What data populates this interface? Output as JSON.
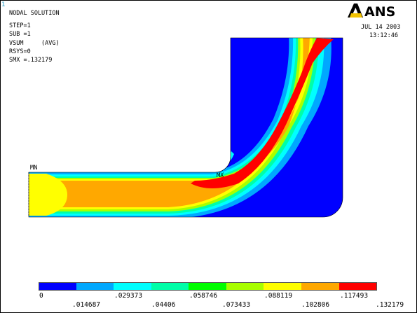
{
  "window_number": "1",
  "header": {
    "title": "NODAL SOLUTION",
    "lines": [
      "STEP=1",
      "SUB =1",
      "VSUM     (AVG)",
      "RSYS=0",
      "SMX =.132179"
    ]
  },
  "brand": {
    "logo_text": "ANSYS",
    "logo_color": "#000000",
    "accent_color": "#f2c200"
  },
  "date": "JUL 14 2003",
  "time": "13:12:46",
  "markers": {
    "min": "MN",
    "max": "MX"
  },
  "colors": {
    "c0": "#0000ff",
    "c1": "#00a8ff",
    "c2": "#00ffff",
    "c3": "#00ffa8",
    "c4": "#00ff00",
    "c5": "#a8ff00",
    "c6": "#ffff00",
    "c7": "#ffa800",
    "c8": "#ff0000"
  },
  "legend": {
    "colors": [
      "#0000ff",
      "#00a8ff",
      "#00ffff",
      "#00ffa8",
      "#00ff00",
      "#a8ff00",
      "#ffff00",
      "#ffa800",
      "#ff0000"
    ],
    "upper_labels": [
      "0",
      ".029373",
      ".058746",
      ".088119",
      ".117493"
    ],
    "lower_labels": [
      ".014687",
      ".04406",
      ".073433",
      ".102806",
      ".132179"
    ]
  }
}
